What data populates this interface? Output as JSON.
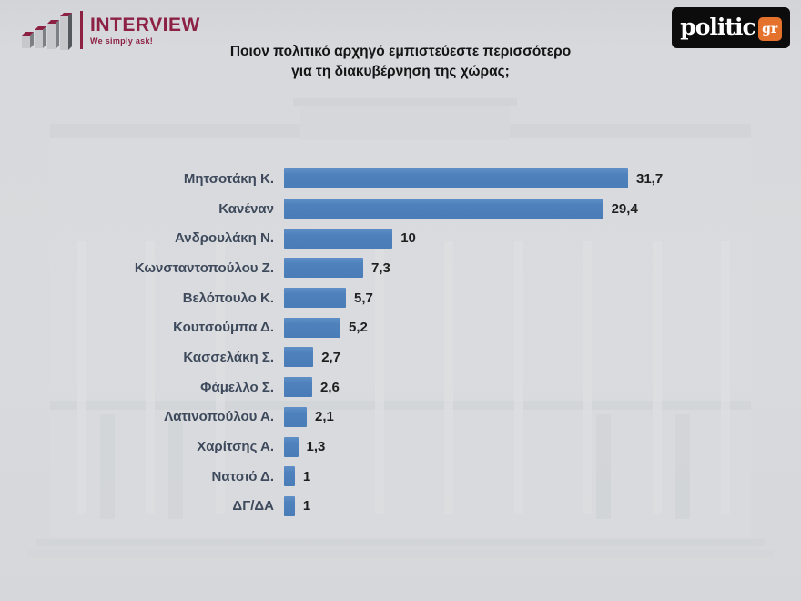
{
  "header": {
    "interview_logo": {
      "icon": "ascending-3d-bars-icon",
      "name": "INTERVIEW",
      "tagline": "We simply ask!",
      "brand_color": "#8c2144"
    },
    "politic_logo": {
      "name": "politic",
      "suffix": "gr",
      "bg_color": "#0c0c0c",
      "badge_color": "#e4722c"
    }
  },
  "title": {
    "line1": "Ποιον πολιτικό αρχηγό εμπιστεύεστε περισσότερο",
    "line2": "για τη διακυβέρνηση της χώρας;"
  },
  "chart_data": {
    "type": "bar",
    "orientation": "horizontal",
    "title": "Ποιον πολιτικό αρχηγό εμπιστεύεστε περισσότερο για τη διακυβέρνηση της χώρας;",
    "categories": [
      "Μητσοτάκη Κ.",
      "Κανέναν",
      "Ανδρουλάκη Ν.",
      "Κωνσταντοπούλου Ζ.",
      "Βελόπουλο Κ.",
      "Κουτσούμπα Δ.",
      "Κασσελάκη Σ.",
      "Φάμελλο Σ.",
      "Λατινοπούλου Α.",
      "Χαρίτσης Α.",
      "Νατσιό Δ.",
      "ΔΓ/ΔΑ"
    ],
    "values": [
      31.7,
      29.4,
      10,
      7.3,
      5.7,
      5.2,
      2.7,
      2.6,
      2.1,
      1.3,
      1,
      1
    ],
    "value_labels": [
      "31,7",
      "29,4",
      "10",
      "7,3",
      "5,7",
      "5,2",
      "2,7",
      "2,6",
      "2,1",
      "1,3",
      "1",
      "1"
    ],
    "xlim": [
      0,
      35
    ],
    "grid": false,
    "legend": "none",
    "bar_color": "#4f81bd",
    "category_label_color": "#3e4a5c",
    "value_label_color": "#1f1f1f",
    "background": "faint Hellenic Parliament building photo, washed out light gray"
  }
}
